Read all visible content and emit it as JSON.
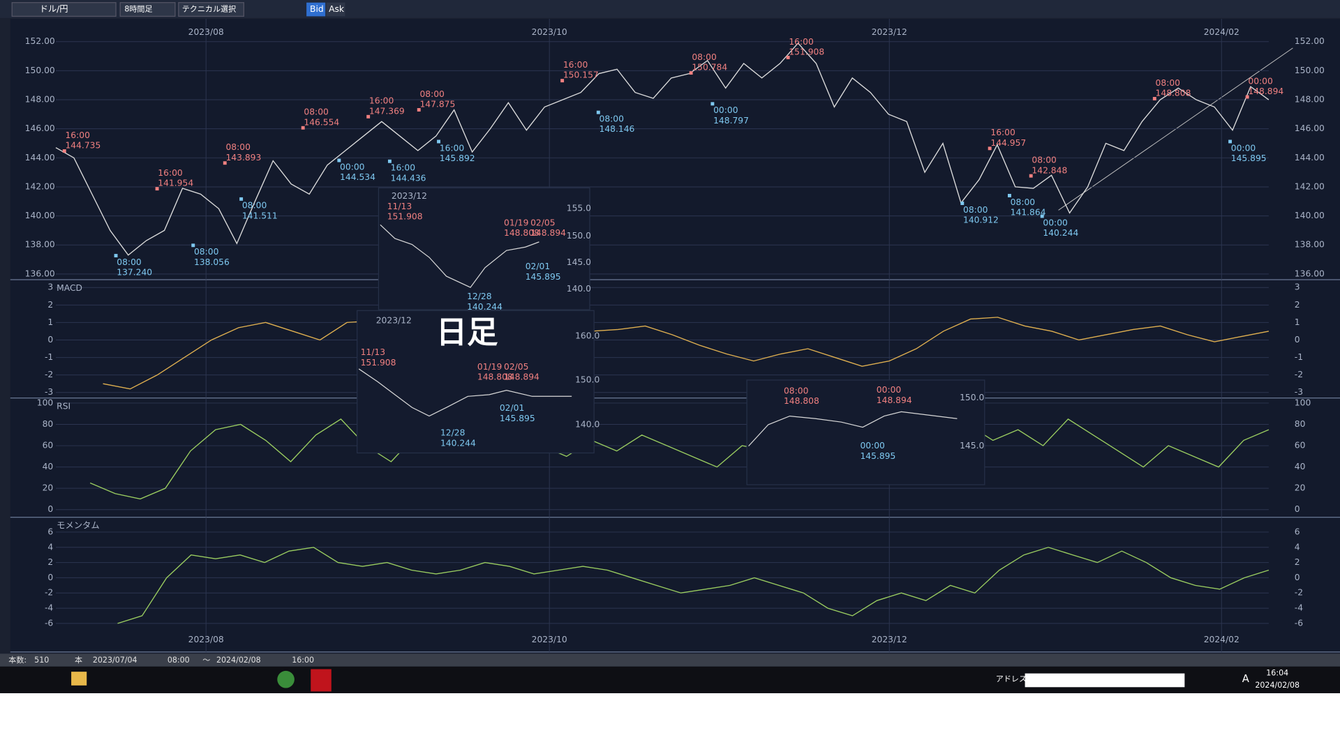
{
  "toolbar": {
    "pair": "ドル/円",
    "timeframe": "8時間足",
    "technical": "テクニカル選択",
    "bid": "Bid",
    "ask": "Ask"
  },
  "chart_data": [
    {
      "type": "line",
      "color": "#dcdcdc",
      "values": [
        144.7,
        144,
        141.5,
        139,
        137.3,
        138.3,
        139,
        141.9,
        141.5,
        140.5,
        138.1,
        141,
        143.8,
        142.2,
        141.5,
        143.5,
        144.5,
        145.5,
        146.5,
        145.5,
        144.5,
        145.5,
        147.3,
        144.4,
        146,
        147.8,
        145.9,
        147.5,
        148,
        148.5,
        149.8,
        150.1,
        148.5,
        148.1,
        149.5,
        149.8,
        150.7,
        148.8,
        150.5,
        149.5,
        150.5,
        151.9,
        150.5,
        147.5,
        149.5,
        148.5,
        147,
        146.5,
        143,
        145,
        140.9,
        142.5,
        144.9,
        142,
        141.9,
        142.8,
        140.2,
        142,
        145,
        144.5,
        146.5,
        148,
        148.8,
        148,
        147.5,
        145.9,
        148.9,
        148
      ],
      "ylim": [
        135.61,
        153.57
      ],
      "yticks": [
        {
          "value": 152,
          "label": "152.00"
        },
        {
          "value": 150,
          "label": "150.00"
        },
        {
          "value": 148,
          "label": "148.00"
        },
        {
          "value": 146,
          "label": "146.00"
        },
        {
          "value": 144,
          "label": "144.00"
        },
        {
          "value": 142,
          "label": "142.00"
        },
        {
          "value": 140,
          "label": "140.00"
        },
        {
          "value": 138,
          "label": "138.00"
        },
        {
          "value": 136,
          "label": "136.00"
        }
      ],
      "x_labels": [
        "2023/08",
        "2023/10",
        "2023/12",
        "2024/02"
      ],
      "grid": true,
      "annotations": [
        {
          "time": "16:00",
          "price": "144.735",
          "color": "#f08080"
        },
        {
          "time": "08:00",
          "price": "137.240",
          "color": "#7ec8f0"
        },
        {
          "time": "16:00",
          "price": "141.954",
          "color": "#f08080"
        },
        {
          "time": "08:00",
          "price": "138.056",
          "color": "#7ec8f0"
        },
        {
          "time": "08:00",
          "price": "143.893",
          "color": "#f08080"
        },
        {
          "time": "08:00",
          "price": "141.511",
          "color": "#7ec8f0"
        },
        {
          "time": "08:00",
          "price": "146.554",
          "color": "#f08080"
        },
        {
          "time": "00:00",
          "price": "144.534",
          "color": "#7ec8f0"
        },
        {
          "time": "16:00",
          "price": "147.369",
          "color": "#f08080"
        },
        {
          "time": "16:00",
          "price": "144.436",
          "color": "#7ec8f0"
        },
        {
          "time": "08:00",
          "price": "147.875",
          "color": "#f08080"
        },
        {
          "time": "16:00",
          "price": "145.892",
          "color": "#7ec8f0"
        },
        {
          "time": "16:00",
          "price": "150.157",
          "color": "#f08080"
        },
        {
          "time": "08:00",
          "price": "148.146",
          "color": "#7ec8f0"
        },
        {
          "time": "08:00",
          "price": "150.784",
          "color": "#f08080"
        },
        {
          "time": "00:00",
          "price": "148.797",
          "color": "#7ec8f0"
        },
        {
          "time": "16:00",
          "price": "151.908",
          "color": "#f08080"
        },
        {
          "time": "16:00",
          "price": "144.957",
          "color": "#f08080"
        },
        {
          "time": "08:00",
          "price": "140.912",
          "color": "#7ec8f0"
        },
        {
          "time": "08:00",
          "price": "142.848",
          "color": "#f08080"
        },
        {
          "time": "08:00",
          "price": "141.864",
          "color": "#7ec8f0"
        },
        {
          "time": "00:00",
          "price": "140.244",
          "color": "#7ec8f0"
        },
        {
          "time": "08:00",
          "price": "148.808",
          "color": "#f08080"
        },
        {
          "time": "00:00",
          "price": "148.894",
          "color": "#f08080"
        },
        {
          "time": "00:00",
          "price": "145.895",
          "color": "#7ec8f0"
        }
      ]
    },
    {
      "type": "line",
      "title": "MACD",
      "color": "#e0b050",
      "values": [
        -2.5,
        -2.8,
        -2,
        -1,
        0,
        0.7,
        1,
        0.5,
        0,
        1,
        1.1,
        0.6,
        0.3,
        0.8,
        0.5,
        0.2,
        0.3,
        0.4,
        0.5,
        0.6,
        0.8,
        0.3,
        -0.3,
        -0.8,
        -1.2,
        -0.8,
        -0.5,
        -1,
        -1.5,
        -1.2,
        -0.5,
        0.5,
        1.2,
        1.3,
        0.8,
        0.5,
        0,
        0.3,
        0.6,
        0.8,
        0.3,
        -0.1,
        0.2,
        0.5
      ],
      "ylim": [
        -3.32,
        3.4
      ],
      "yticks": [
        3,
        2,
        1,
        0,
        -1,
        -2,
        -3
      ],
      "grid": true
    },
    {
      "type": "line",
      "title": "RSI",
      "color": "#9acd60",
      "values": [
        25,
        15,
        10,
        20,
        55,
        75,
        80,
        65,
        45,
        70,
        85,
        60,
        45,
        70,
        55,
        80,
        85,
        70,
        60,
        50,
        65,
        55,
        70,
        60,
        50,
        40,
        60,
        55,
        45,
        35,
        55,
        30,
        25,
        40,
        70,
        80,
        65,
        75,
        60,
        85,
        70,
        55,
        40,
        60,
        50,
        40,
        65,
        75
      ],
      "ylim": [
        -7.2,
        103.9
      ],
      "yticks": [
        100,
        80,
        60,
        40,
        20,
        0
      ],
      "grid": true
    },
    {
      "type": "line",
      "title": "モメンタム",
      "color": "#9acd60",
      "values": [
        -6,
        -5,
        0,
        3,
        2.5,
        3,
        2,
        3.5,
        4,
        2,
        1.5,
        2,
        1,
        0.5,
        1,
        2,
        1.5,
        0.5,
        1,
        1.5,
        1,
        0,
        -1,
        -2,
        -1.5,
        -1,
        0,
        -1,
        -2,
        -4,
        -5,
        -3,
        -2,
        -3,
        -1,
        -2,
        1,
        3,
        4,
        3,
        2,
        3.5,
        2,
        0,
        -1,
        -1.5,
        0,
        1
      ],
      "ylim": [
        -9.75,
        7.83
      ],
      "yticks": [
        6,
        4,
        2,
        0,
        -2,
        -4,
        -6
      ],
      "grid": true
    }
  ],
  "insets": [
    {
      "texts": [
        "2023/12",
        "11/13",
        "151.908",
        "01/19",
        "148.808",
        "02/05",
        "148.894",
        "02/01",
        "145.895",
        "12/28",
        "140.244",
        "155.0",
        "150.0",
        "145.0",
        "140.0"
      ]
    },
    {
      "texts": [
        "2023/12",
        "11/13",
        "151.908",
        "01/19",
        "148.808",
        "02/05",
        "148.894",
        "02/01",
        "145.895",
        "12/28",
        "140.244",
        "160.0",
        "150.0",
        "140.0",
        "日足"
      ]
    },
    {
      "texts": [
        "08:00",
        "148.808",
        "00:00",
        "148.894",
        "00:00",
        "145.895",
        "150.0",
        "145.0"
      ]
    }
  ],
  "status": {
    "count_label": "本数:",
    "count": "510",
    "unit": "本",
    "from_date": "2023/07/04",
    "from_time": "08:00",
    "tilde": "～",
    "to_date": "2024/02/08",
    "to_time": "16:00"
  },
  "taskbar": {
    "address": "アドレス",
    "ime": "A",
    "time": "16:04",
    "date": "2024/02/08"
  }
}
